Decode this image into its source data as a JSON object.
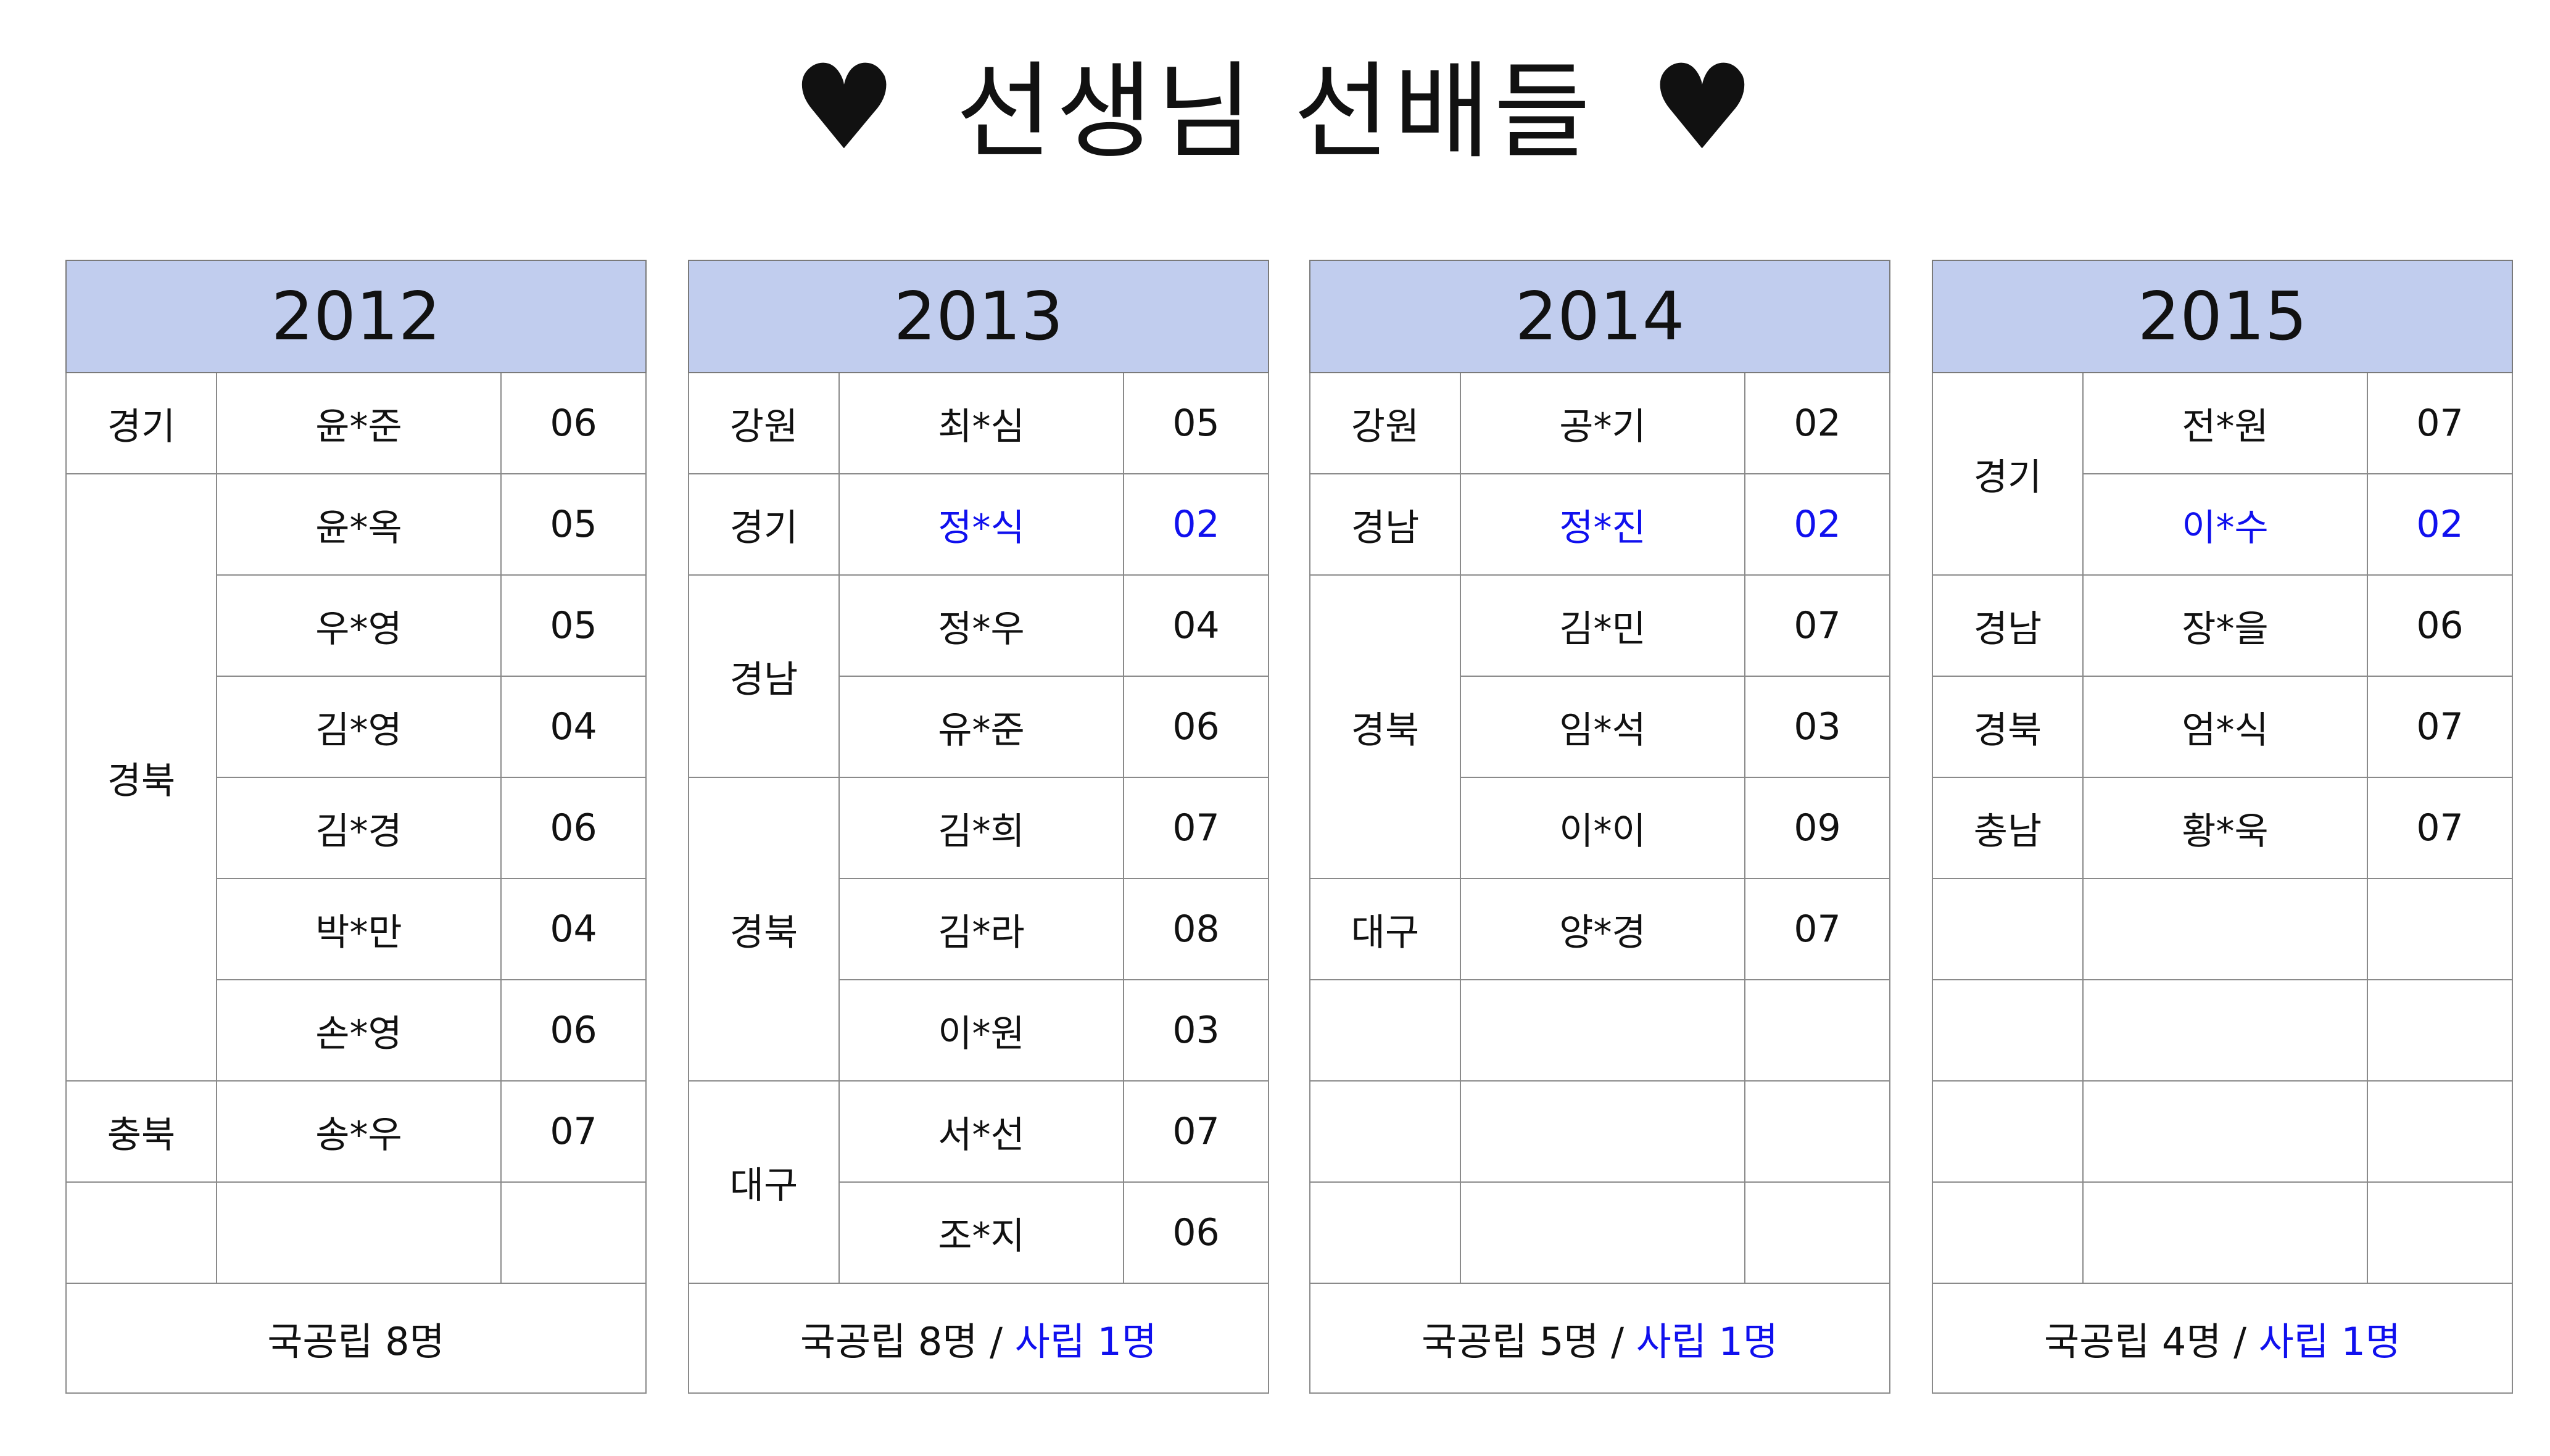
{
  "title": {
    "text": "선생님 선배들",
    "heart_icon": "♥"
  },
  "highlight_color": "#1010ee",
  "header_color": "#c1cdee",
  "panels": [
    {
      "year": "2012",
      "rows": [
        {
          "region": "경기",
          "span": 1,
          "name": "윤*준",
          "num": "06"
        },
        {
          "region": "경북",
          "span": 6,
          "name": "윤*옥",
          "num": "05"
        },
        {
          "name": "우*영",
          "num": "05"
        },
        {
          "name": "김*영",
          "num": "04"
        },
        {
          "name": "김*경",
          "num": "06"
        },
        {
          "name": "박*만",
          "num": "04"
        },
        {
          "name": "손*영",
          "num": "06"
        },
        {
          "region": "충북",
          "span": 1,
          "name": "송*우",
          "num": "07"
        },
        {
          "region": "",
          "span": 1,
          "name": "",
          "num": ""
        }
      ],
      "footer": {
        "national": "국공립 8명",
        "sep": "",
        "private": ""
      }
    },
    {
      "year": "2013",
      "rows": [
        {
          "region": "강원",
          "span": 1,
          "name": "최*심",
          "num": "05"
        },
        {
          "region": "경기",
          "span": 1,
          "name": "정*식",
          "num": "02",
          "highlight": true
        },
        {
          "region": "경남",
          "span": 2,
          "name": "정*우",
          "num": "04"
        },
        {
          "name": "유*준",
          "num": "06"
        },
        {
          "region": "경북",
          "span": 3,
          "name": "김*희",
          "num": "07"
        },
        {
          "name": "김*라",
          "num": "08"
        },
        {
          "name": "이*원",
          "num": "03"
        },
        {
          "region": "대구",
          "span": 2,
          "name": "서*선",
          "num": "07"
        },
        {
          "name": "조*지",
          "num": "06"
        }
      ],
      "footer": {
        "national": "국공립 8명",
        "sep": " / ",
        "private": "사립 1명"
      }
    },
    {
      "year": "2014",
      "rows": [
        {
          "region": "강원",
          "span": 1,
          "name": "공*기",
          "num": "02"
        },
        {
          "region": "경남",
          "span": 1,
          "name": "정*진",
          "num": "02",
          "highlight": true
        },
        {
          "region": "경북",
          "span": 3,
          "name": "김*민",
          "num": "07"
        },
        {
          "name": "임*석",
          "num": "03"
        },
        {
          "name": "이*이",
          "num": "09"
        },
        {
          "region": "대구",
          "span": 1,
          "name": "양*경",
          "num": "07"
        },
        {
          "region": "",
          "span": 1,
          "name": "",
          "num": ""
        },
        {
          "region": "",
          "span": 1,
          "name": "",
          "num": ""
        },
        {
          "region": "",
          "span": 1,
          "name": "",
          "num": ""
        }
      ],
      "footer": {
        "national": "국공립 5명",
        "sep": " / ",
        "private": "사립 1명"
      }
    },
    {
      "year": "2015",
      "rows": [
        {
          "region": "경기",
          "span": 2,
          "name": "전*원",
          "num": "07"
        },
        {
          "name": "이*수",
          "num": "02",
          "highlight": true
        },
        {
          "region": "경남",
          "span": 1,
          "name": "장*을",
          "num": "06"
        },
        {
          "region": "경북",
          "span": 1,
          "name": "엄*식",
          "num": "07"
        },
        {
          "region": "충남",
          "span": 1,
          "name": "황*욱",
          "num": "07"
        },
        {
          "region": "",
          "span": 1,
          "name": "",
          "num": ""
        },
        {
          "region": "",
          "span": 1,
          "name": "",
          "num": ""
        },
        {
          "region": "",
          "span": 1,
          "name": "",
          "num": ""
        },
        {
          "region": "",
          "span": 1,
          "name": "",
          "num": ""
        }
      ],
      "footer": {
        "national": "국공립 4명",
        "sep": " / ",
        "private": "사립 1명"
      }
    }
  ]
}
